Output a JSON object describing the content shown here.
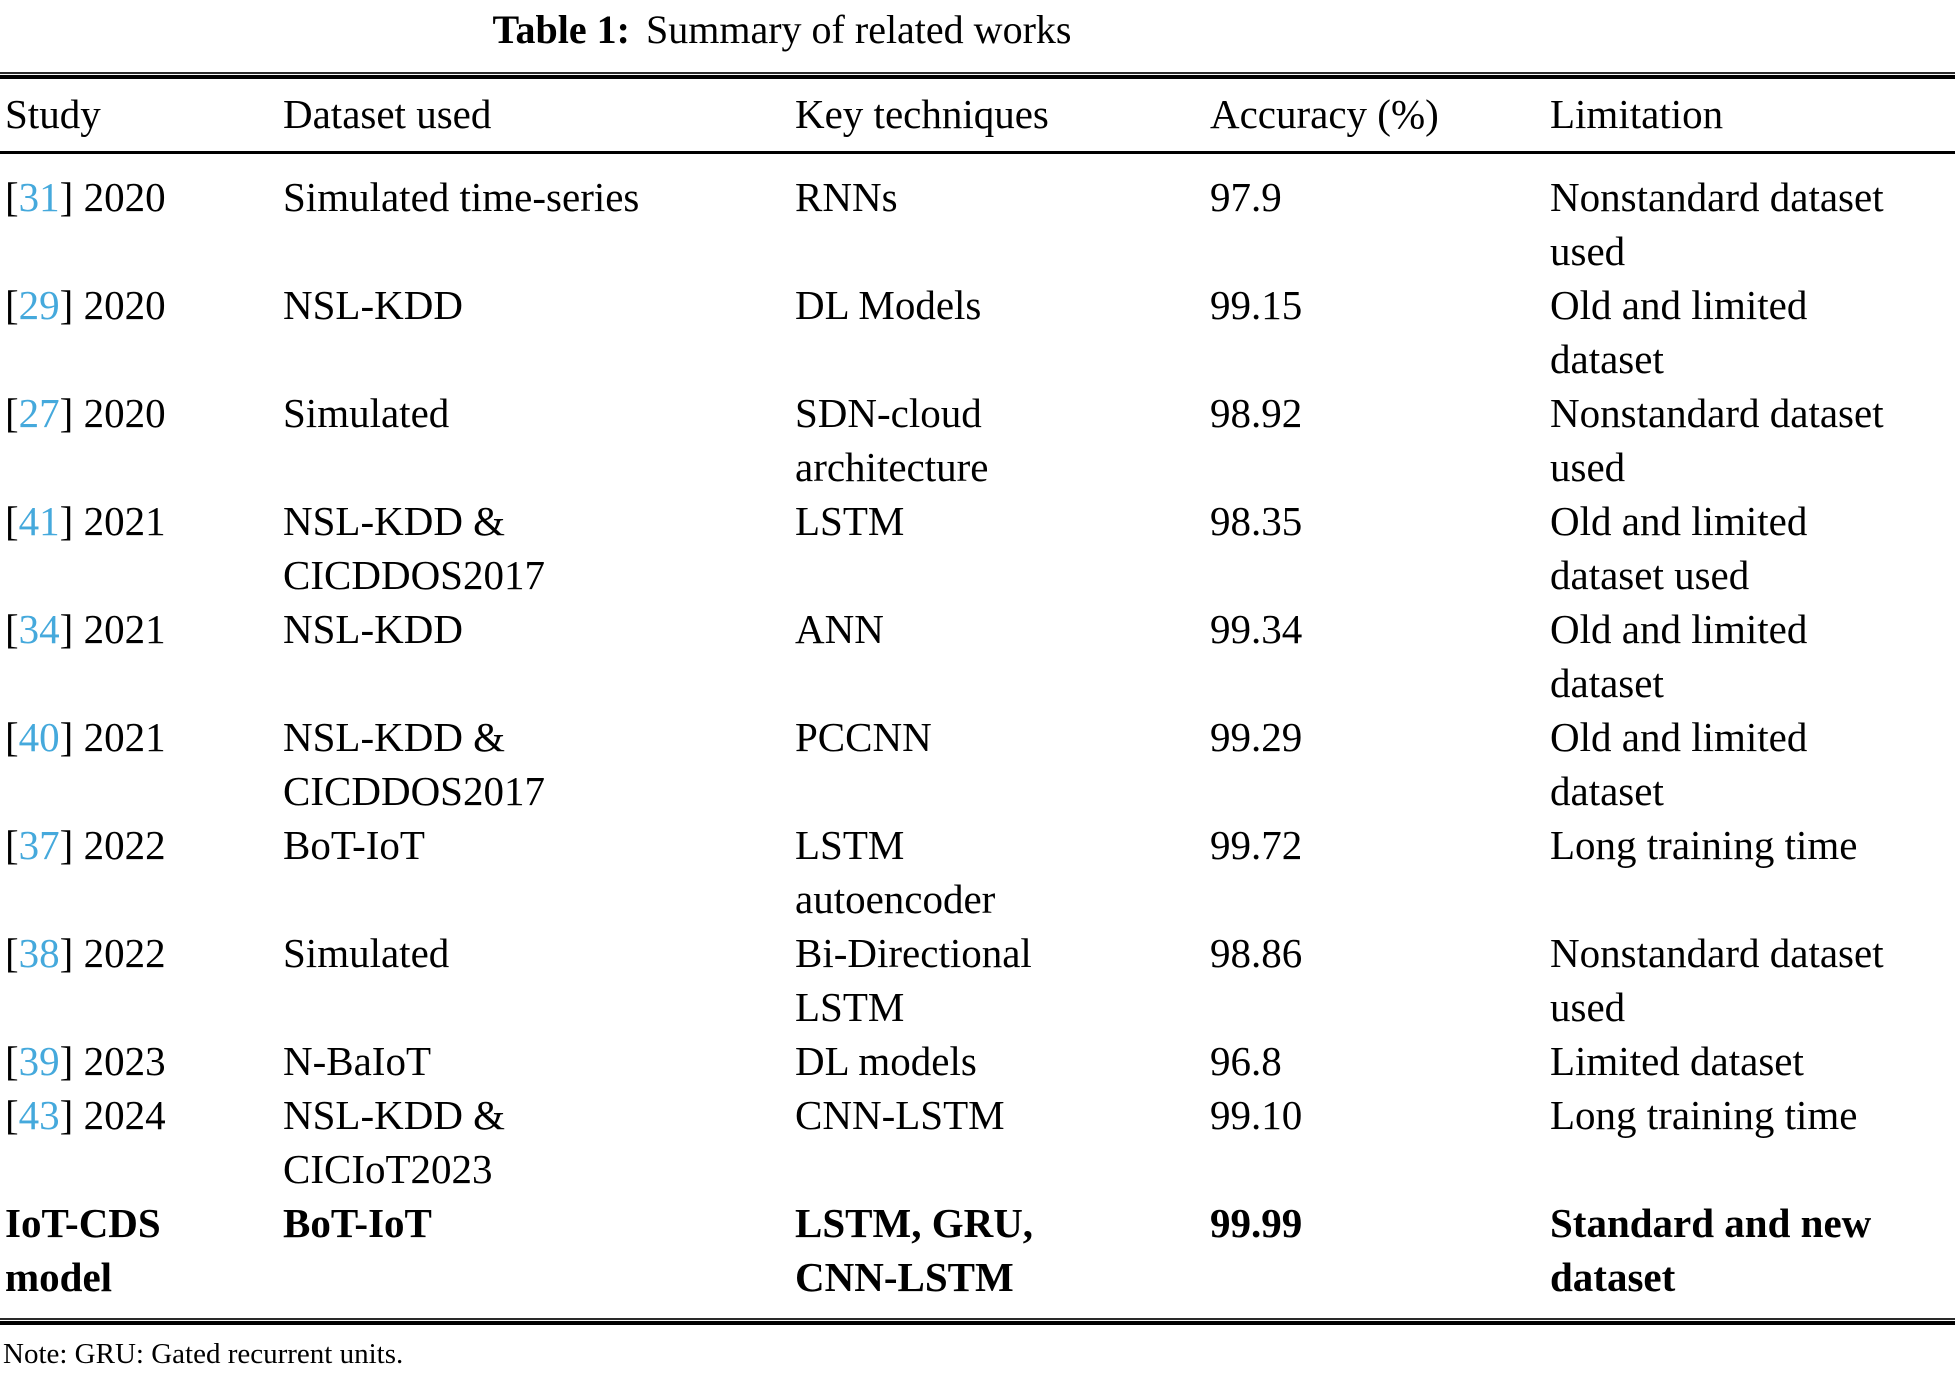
{
  "title": {
    "label": "Table 1:",
    "text": "Summary of related works"
  },
  "table": {
    "headers": [
      "Study",
      "Dataset used",
      "Key techniques",
      "Accuracy (%)",
      "Limitation"
    ],
    "rows": [
      {
        "ref": "31",
        "year": "2020",
        "dataset": "Simulated time-series",
        "techniques": "RNNs",
        "accuracy": "97.9",
        "limitation": "Nonstandard dataset\nused",
        "bold": false
      },
      {
        "ref": "29",
        "year": "2020",
        "dataset": "NSL-KDD",
        "techniques": "DL Models",
        "accuracy": "99.15",
        "limitation": "Old and limited\ndataset",
        "bold": false
      },
      {
        "ref": "27",
        "year": "2020",
        "dataset": "Simulated",
        "techniques": "SDN-cloud\narchitecture",
        "accuracy": "98.92",
        "limitation": "Nonstandard dataset\nused",
        "bold": false
      },
      {
        "ref": "41",
        "year": "2021",
        "dataset": "NSL-KDD &\nCICDDOS2017",
        "techniques": "LSTM",
        "accuracy": "98.35",
        "limitation": "Old and limited\ndataset used",
        "bold": false
      },
      {
        "ref": "34",
        "year": "2021",
        "dataset": "NSL-KDD",
        "techniques": "ANN",
        "accuracy": "99.34",
        "limitation": "Old and limited\ndataset",
        "bold": false
      },
      {
        "ref": "40",
        "year": "2021",
        "dataset": "NSL-KDD &\nCICDDOS2017",
        "techniques": "PCCNN",
        "accuracy": "99.29",
        "limitation": "Old and limited\ndataset",
        "bold": false
      },
      {
        "ref": "37",
        "year": "2022",
        "dataset": "BoT-IoT",
        "techniques": "LSTM\nautoencoder",
        "accuracy": "99.72",
        "limitation": "Long training time",
        "bold": false
      },
      {
        "ref": "38",
        "year": "2022",
        "dataset": "Simulated",
        "techniques": "Bi-Directional\nLSTM",
        "accuracy": "98.86",
        "limitation": "Nonstandard dataset\nused",
        "bold": false
      },
      {
        "ref": "39",
        "year": "2023",
        "dataset": "N-BaIoT",
        "techniques": "DL models",
        "accuracy": "96.8",
        "limitation": "Limited dataset",
        "bold": false
      },
      {
        "ref": "43",
        "year": "2024",
        "dataset": "NSL-KDD &\nCICIoT2023",
        "techniques": "CNN-LSTM",
        "accuracy": "99.10",
        "limitation": "Long training time",
        "bold": false
      },
      {
        "ref": null,
        "study": "IoT-CDS\nmodel",
        "year": null,
        "dataset": "BoT-IoT",
        "techniques": "LSTM, GRU,\nCNN-LSTM",
        "accuracy": "99.99",
        "limitation": "Standard and new\ndataset",
        "bold": true
      }
    ]
  },
  "note": "Note: GRU: Gated recurrent units.",
  "colors": {
    "citation_link": "#45A9DC",
    "text": "#000000",
    "background": "#FFFFFF"
  }
}
